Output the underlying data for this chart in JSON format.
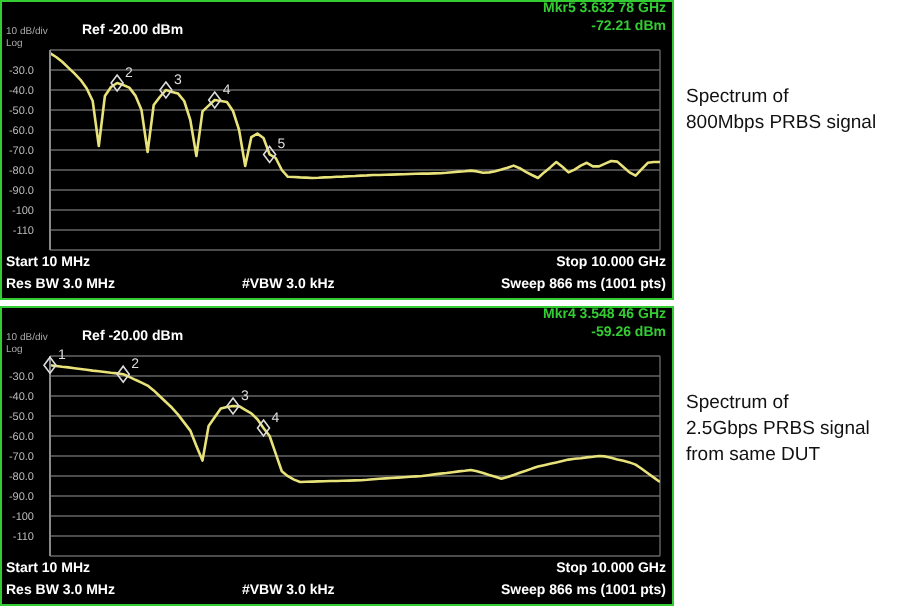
{
  "chart_data": [
    {
      "type": "line",
      "categories": [
        null,
        null,
        null,
        null,
        null,
        null,
        null,
        null,
        null,
        null,
        null,
        null,
        null,
        null,
        null,
        null,
        null,
        null,
        null,
        null,
        null,
        null,
        null,
        null,
        null,
        null,
        null,
        null,
        null,
        null,
        null,
        null,
        null,
        null,
        null,
        null,
        null,
        null,
        null,
        null,
        null,
        null,
        null,
        null,
        null,
        null,
        null,
        null,
        null,
        null,
        null,
        null,
        null,
        null,
        null,
        null,
        null,
        null,
        null,
        null,
        null,
        null,
        null,
        null,
        null,
        null,
        null,
        null,
        null,
        null,
        null,
        null,
        null,
        null,
        null,
        null,
        null,
        null,
        null,
        null,
        null,
        null,
        null,
        null,
        null,
        null,
        null,
        null,
        null,
        null,
        null,
        null,
        null,
        null,
        null,
        null,
        null,
        null,
        null,
        null,
        null
      ],
      "series": [
        {
          "color": "#e8e27a",
          "values": [
            -21.6,
            -23.5,
            -25.9,
            -28.8,
            -31.7,
            -34.9,
            -39.1,
            -45.5,
            -68,
            -43,
            -38.5,
            -36.5,
            -37.5,
            -38.8,
            -42.8,
            -50,
            -71,
            -47.5,
            -43.5,
            -40,
            -41,
            -41.8,
            -45.5,
            -55,
            -73,
            -50.7,
            -47.8,
            -45,
            -45.5,
            -46,
            -50.5,
            -60,
            -78,
            -63.6,
            -61.8,
            -64,
            -72.21,
            -74,
            -80,
            -83.4,
            -83.5,
            -83.7,
            -83.8,
            -84,
            -83.9,
            -83.7,
            -83.6,
            -83.4,
            -83.3,
            -83.1,
            -83,
            -82.8,
            -82.7,
            -82.5,
            -82.5,
            -82.4,
            -82.3,
            -82.2,
            -82.1,
            -82,
            -81.9,
            -81.8,
            -81.8,
            -81.7,
            -81.6,
            -81.4,
            -81.1,
            -80.8,
            -80.6,
            -80.3,
            -80.7,
            -81.4,
            -81.2,
            -80.6,
            -79.8,
            -78.9,
            -77.8,
            -79.1,
            -80.9,
            -82.5,
            -84,
            -81.2,
            -78.7,
            -76,
            -78.4,
            -81.2,
            -79.8,
            -77.8,
            -76.4,
            -78.2,
            -78.2,
            -76.8,
            -75.5,
            -75.8,
            -78.5,
            -81.2,
            -82.8,
            -79.6,
            -76.4,
            -76,
            -76
          ]
        }
      ],
      "ylim": [
        -120,
        -20
      ],
      "yticks": [
        {
          "value": -20,
          "label": null
        },
        {
          "value": -30,
          "label": "-30.0"
        },
        {
          "value": -40,
          "label": "-40.0"
        },
        {
          "value": -50,
          "label": "-50.0"
        },
        {
          "value": -60,
          "label": "-60.0"
        },
        {
          "value": -70,
          "label": "-70.0"
        },
        {
          "value": -80,
          "label": "-80.0"
        },
        {
          "value": -90,
          "label": "-90.0"
        },
        {
          "value": -100,
          "label": "-100"
        },
        {
          "value": -110,
          "label": "-110"
        },
        {
          "value": -120,
          "label": null
        }
      ],
      "grid": true,
      "legend": false,
      "tick_labels": "y",
      "annotations": [
        "10 dB/div",
        "Log",
        "Ref -20.00 dBm",
        "Mkr5 3.632 78 GHz",
        "-72.21 dBm",
        "Start 10 MHz",
        "Stop 10.000 GHz",
        "Res BW 3.0 MHz",
        "#VBW 3.0 kHz",
        "Sweep  866 ms (1001 pts)",
        "Spectrum of\n800Mbps PRBS signal",
        {
          "text": "2",
          "y": -36.5
        },
        {
          "text": "3",
          "y": -40
        },
        {
          "text": "4",
          "y": -45
        },
        {
          "text": "5",
          "y": -72.21
        }
      ]
    },
    {
      "type": "line",
      "categories": [
        null,
        null,
        null,
        null,
        null,
        null,
        null,
        null,
        null,
        null,
        null,
        null,
        null,
        null,
        null,
        null,
        null,
        null,
        null,
        null,
        null,
        null,
        null,
        null,
        null,
        null,
        null,
        null,
        null,
        null,
        null,
        null,
        null,
        null,
        null,
        null,
        null,
        null,
        null,
        null,
        null,
        null,
        null,
        null,
        null,
        null,
        null,
        null,
        null,
        null,
        null,
        null,
        null,
        null,
        null,
        null,
        null,
        null,
        null,
        null,
        null,
        null,
        null,
        null,
        null,
        null,
        null,
        null,
        null,
        null,
        null,
        null,
        null,
        null,
        null,
        null,
        null,
        null,
        null,
        null,
        null,
        null,
        null,
        null,
        null,
        null,
        null,
        null,
        null,
        null,
        null,
        null,
        null,
        null,
        null,
        null,
        null,
        null,
        null,
        null,
        null
      ],
      "series": [
        {
          "color": "#e8e27a",
          "values": [
            -24.6,
            -25,
            -25.4,
            -25.7,
            -26.1,
            -26.5,
            -26.9,
            -27.3,
            -27.6,
            -28,
            -28.4,
            -28.7,
            -29.1,
            -30.4,
            -31.9,
            -33.3,
            -34.8,
            -37.2,
            -40.1,
            -43,
            -45.9,
            -49.3,
            -53.3,
            -57.3,
            -65,
            -72.3,
            -55,
            -50.6,
            -46.2,
            -45.5,
            -45,
            -45.1,
            -46.9,
            -48.7,
            -51.6,
            -56,
            -60,
            -68.8,
            -77.6,
            -80.1,
            -81.8,
            -83,
            -82.9,
            -82.8,
            -82.7,
            -82.6,
            -82.5,
            -82.5,
            -82.4,
            -82.3,
            -82.2,
            -82.1,
            -81.9,
            -81.6,
            -81.4,
            -81.2,
            -81,
            -80.8,
            -80.6,
            -80.4,
            -80.2,
            -80,
            -79.6,
            -79.2,
            -78.8,
            -78.5,
            -78.1,
            -77.7,
            -77.4,
            -77,
            -77.6,
            -78.5,
            -79.5,
            -80.4,
            -81.4,
            -80.5,
            -79.5,
            -78.4,
            -77.4,
            -76.3,
            -75.3,
            -74.6,
            -73.9,
            -73.2,
            -72.5,
            -71.8,
            -71.4,
            -71.1,
            -70.7,
            -70.4,
            -70,
            -70.2,
            -70.9,
            -71.7,
            -72.4,
            -73.2,
            -74.3,
            -76.4,
            -78.6,
            -80.8,
            -83
          ]
        }
      ],
      "ylim": [
        -120,
        -20
      ],
      "yticks": [
        {
          "value": -20,
          "label": null
        },
        {
          "value": -30,
          "label": "-30.0"
        },
        {
          "value": -40,
          "label": "-40.0"
        },
        {
          "value": -50,
          "label": "-50.0"
        },
        {
          "value": -60,
          "label": "-60.0"
        },
        {
          "value": -70,
          "label": "-70.0"
        },
        {
          "value": -80,
          "label": "-80.0"
        },
        {
          "value": -90,
          "label": "-90.0"
        },
        {
          "value": -100,
          "label": "-100"
        },
        {
          "value": -110,
          "label": "-110"
        },
        {
          "value": -120,
          "label": null
        }
      ],
      "grid": true,
      "legend": false,
      "tick_labels": "y",
      "annotations": [
        "10 dB/div",
        "Log",
        "Ref -20.00 dBm",
        "Mkr4 3.548 46 GHz",
        "-59.26 dBm",
        "Start 10 MHz",
        "Stop 10.000 GHz",
        "Res BW 3.0 MHz",
        "#VBW 3.0 kHz",
        "Sweep  866 ms (1001 pts)",
        "Spectrum of\n2.5Gbps PRBS signal\nfrom same DUT",
        {
          "text": "1",
          "y": -24.6
        },
        {
          "text": "2",
          "y": -29.1
        },
        {
          "text": "3",
          "y": -45
        },
        {
          "text": "4",
          "y": -56
        }
      ]
    }
  ]
}
